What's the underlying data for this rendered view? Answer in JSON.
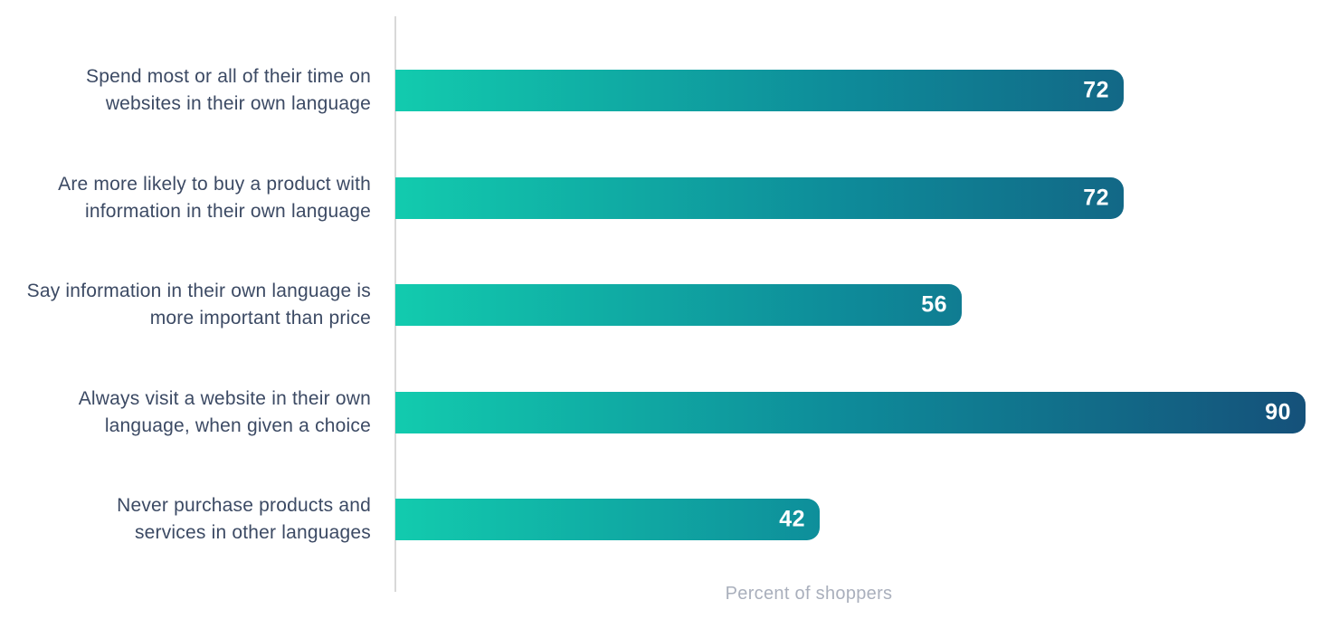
{
  "chart_data": {
    "type": "bar",
    "orientation": "horizontal",
    "title": "",
    "xlabel": "Percent of shoppers",
    "ylabel": "",
    "categories": [
      "Spend most or all of their time on\nwebsites in their own language",
      "Are more likely to buy a product with\ninformation in their own language",
      "Say information in their own language is\nmore important than price",
      "Always visit a website in their own\nlanguage, when given a choice",
      "Never purchase products and\nservices in other languages"
    ],
    "values": [
      72,
      72,
      56,
      90,
      42
    ],
    "xlim": [
      0,
      90
    ],
    "grid": false,
    "legend": "none",
    "value_labels_shown": true,
    "colors": {
      "bar_gradient_start": "#12CBAE",
      "bar_gradient_mid": "#0E8A99",
      "bar_gradient_end": "#15517A",
      "category_label": "#3C4A64",
      "value_label": "#FFFFFF",
      "axis_line": "#D9D9D9",
      "axis_title": "#A9AFBC",
      "background": "#FFFFFF"
    }
  }
}
